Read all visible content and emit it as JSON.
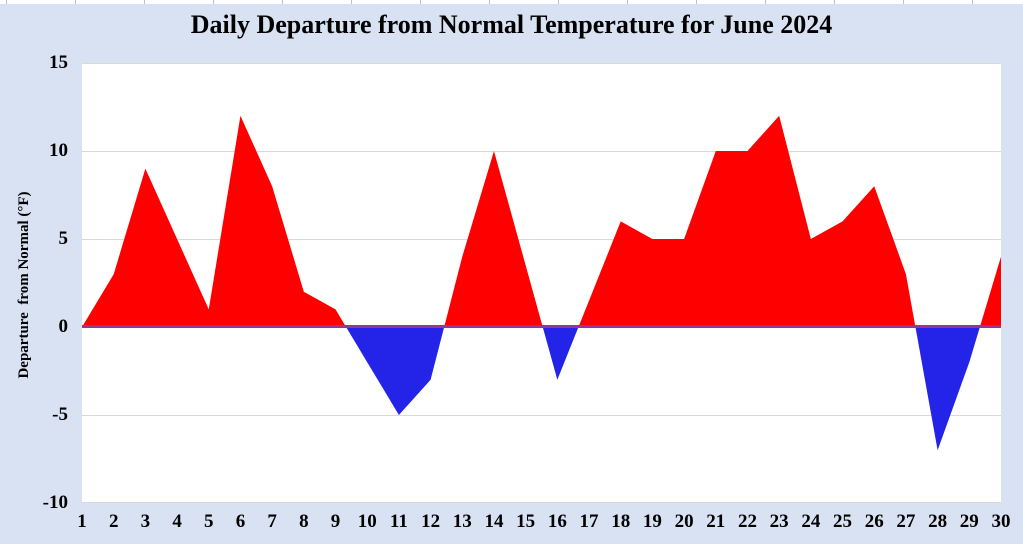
{
  "chart": {
    "title": "Daily Departure from Normal Temperature for June 2024",
    "y_axis": {
      "title": "Departure  from Normal (°F)",
      "tick_labels": [
        "15",
        "10",
        "5",
        "0",
        "-5",
        "-10"
      ],
      "tick_values": [
        15,
        10,
        5,
        0,
        -5,
        -10
      ],
      "min": -10,
      "max": 15
    },
    "x_axis": {
      "tick_labels": [
        "1",
        "2",
        "3",
        "4",
        "5",
        "6",
        "7",
        "8",
        "9",
        "10",
        "11",
        "12",
        "13",
        "14",
        "15",
        "16",
        "17",
        "18",
        "19",
        "20",
        "21",
        "22",
        "23",
        "24",
        "25",
        "26",
        "27",
        "28",
        "29",
        "30"
      ]
    },
    "colors": {
      "above_normal": "#FF0000",
      "below_normal": "#2424E8",
      "zero_line": "#993399",
      "chart_background": "#D9E2F3",
      "plot_background": "#FFFFFF",
      "gridline": "#D9D9D9",
      "text": "#000000",
      "top_strip_tick": "#BFBFBF"
    }
  },
  "chart_data": {
    "type": "area",
    "title": "Daily Departure from Normal Temperature for June 2024",
    "xlabel": "",
    "ylabel": "Departure  from Normal (°F)",
    "x": [
      1,
      2,
      3,
      4,
      5,
      6,
      7,
      8,
      9,
      10,
      11,
      12,
      13,
      14,
      15,
      16,
      17,
      18,
      19,
      20,
      21,
      22,
      23,
      24,
      25,
      26,
      27,
      28,
      29,
      30
    ],
    "values": [
      0,
      3,
      9,
      5,
      1,
      12,
      8,
      2,
      1,
      -2,
      -5,
      -3,
      4,
      10,
      3.5,
      -3,
      1.5,
      6,
      5,
      5,
      10,
      10,
      12,
      5,
      6,
      8,
      3,
      -7,
      -2,
      4
    ],
    "ylim": [
      -10,
      15
    ],
    "y_gridline_step": 5,
    "grid": "horizontal",
    "legend": "none",
    "baseline": 0,
    "positive_fill": "#FF0000",
    "negative_fill": "#2424E8"
  }
}
